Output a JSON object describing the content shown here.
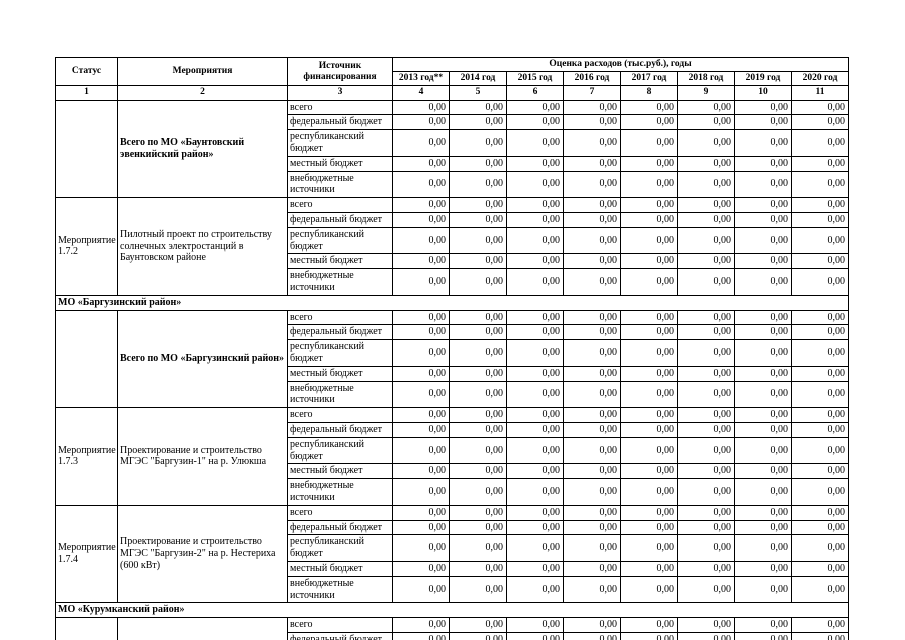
{
  "table": {
    "header": {
      "status": "Статус",
      "activity": "Мероприятия",
      "source": "Источник финансирования",
      "cost_group": "Оценка расходов (тыс.руб.), годы",
      "years": [
        "2013 год**",
        "2014 год",
        "2015 год",
        "2016 год",
        "2017 год",
        "2018 год",
        "2019 год",
        "2020 год"
      ],
      "column_numbers": [
        "1",
        "2",
        "3",
        "4",
        "5",
        "6",
        "7",
        "8",
        "9",
        "10",
        "11"
      ]
    },
    "blocks": [
      {
        "type": "group",
        "status": "",
        "activity": "Всего по МО «Баунтовский эвенкийский район»",
        "activity_bold": true,
        "rows": [
          {
            "source": "всего",
            "values": [
              "0,00",
              "0,00",
              "0,00",
              "0,00",
              "0,00",
              "0,00",
              "0,00",
              "0,00"
            ]
          },
          {
            "source": "федеральный бюджет",
            "values": [
              "0,00",
              "0,00",
              "0,00",
              "0,00",
              "0,00",
              "0,00",
              "0,00",
              "0,00"
            ]
          },
          {
            "source": "республиканский бюджет",
            "values": [
              "0,00",
              "0,00",
              "0,00",
              "0,00",
              "0,00",
              "0,00",
              "0,00",
              "0,00"
            ]
          },
          {
            "source": "местный бюджет",
            "values": [
              "0,00",
              "0,00",
              "0,00",
              "0,00",
              "0,00",
              "0,00",
              "0,00",
              "0,00"
            ]
          },
          {
            "source": "внебюджетные источники",
            "values": [
              "0,00",
              "0,00",
              "0,00",
              "0,00",
              "0,00",
              "0,00",
              "0,00",
              "0,00"
            ]
          }
        ]
      },
      {
        "type": "group",
        "status": "Мероприятие 1.7.2",
        "activity": "Пилотный проект по строительству солнечных электростанций в  Баунтовском районе",
        "activity_bold": false,
        "rows": [
          {
            "source": "всего",
            "values": [
              "0,00",
              "0,00",
              "0,00",
              "0,00",
              "0,00",
              "0,00",
              "0,00",
              "0,00"
            ]
          },
          {
            "source": "федеральный бюджет",
            "values": [
              "0,00",
              "0,00",
              "0,00",
              "0,00",
              "0,00",
              "0,00",
              "0,00",
              "0,00"
            ]
          },
          {
            "source": "республиканский бюджет",
            "values": [
              "0,00",
              "0,00",
              "0,00",
              "0,00",
              "0,00",
              "0,00",
              "0,00",
              "0,00"
            ]
          },
          {
            "source": "местный бюджет",
            "values": [
              "0,00",
              "0,00",
              "0,00",
              "0,00",
              "0,00",
              "0,00",
              "0,00",
              "0,00"
            ]
          },
          {
            "source": "внебюджетные источники",
            "values": [
              "0,00",
              "0,00",
              "0,00",
              "0,00",
              "0,00",
              "0,00",
              "0,00",
              "0,00"
            ]
          }
        ]
      },
      {
        "type": "section",
        "label": "МО «Баргузинский район»"
      },
      {
        "type": "group",
        "status": "",
        "activity": "Всего по МО «Баргузинский район»",
        "activity_bold": true,
        "rows": [
          {
            "source": "всего",
            "values": [
              "0,00",
              "0,00",
              "0,00",
              "0,00",
              "0,00",
              "0,00",
              "0,00",
              "0,00"
            ]
          },
          {
            "source": "федеральный бюджет",
            "values": [
              "0,00",
              "0,00",
              "0,00",
              "0,00",
              "0,00",
              "0,00",
              "0,00",
              "0,00"
            ]
          },
          {
            "source": "республиканский бюджет",
            "values": [
              "0,00",
              "0,00",
              "0,00",
              "0,00",
              "0,00",
              "0,00",
              "0,00",
              "0,00"
            ]
          },
          {
            "source": "местный бюджет",
            "values": [
              "0,00",
              "0,00",
              "0,00",
              "0,00",
              "0,00",
              "0,00",
              "0,00",
              "0,00"
            ]
          },
          {
            "source": "внебюджетные источники",
            "values": [
              "0,00",
              "0,00",
              "0,00",
              "0,00",
              "0,00",
              "0,00",
              "0,00",
              "0,00"
            ]
          }
        ]
      },
      {
        "type": "group",
        "status": "Мероприятие 1.7.3",
        "activity": "Проектирование и строительство МГЭС \"Баргузин-1\" на р. Улюкша",
        "activity_bold": false,
        "rows": [
          {
            "source": "всего",
            "values": [
              "0,00",
              "0,00",
              "0,00",
              "0,00",
              "0,00",
              "0,00",
              "0,00",
              "0,00"
            ]
          },
          {
            "source": "федеральный бюджет",
            "values": [
              "0,00",
              "0,00",
              "0,00",
              "0,00",
              "0,00",
              "0,00",
              "0,00",
              "0,00"
            ]
          },
          {
            "source": "республиканский бюджет",
            "values": [
              "0,00",
              "0,00",
              "0,00",
              "0,00",
              "0,00",
              "0,00",
              "0,00",
              "0,00"
            ]
          },
          {
            "source": "местный бюджет",
            "values": [
              "0,00",
              "0,00",
              "0,00",
              "0,00",
              "0,00",
              "0,00",
              "0,00",
              "0,00"
            ]
          },
          {
            "source": "внебюджетные источники",
            "values": [
              "0,00",
              "0,00",
              "0,00",
              "0,00",
              "0,00",
              "0,00",
              "0,00",
              "0,00"
            ]
          }
        ]
      },
      {
        "type": "group",
        "status": "Мероприятие 1.7.4",
        "activity": "Проектирование и строительство МГЭС \"Баргузин-2\" на р. Нестериха (600 кВт)",
        "activity_bold": false,
        "rows": [
          {
            "source": "всего",
            "values": [
              "0,00",
              "0,00",
              "0,00",
              "0,00",
              "0,00",
              "0,00",
              "0,00",
              "0,00"
            ]
          },
          {
            "source": "федеральный бюджет",
            "values": [
              "0,00",
              "0,00",
              "0,00",
              "0,00",
              "0,00",
              "0,00",
              "0,00",
              "0,00"
            ]
          },
          {
            "source": "республиканский бюджет",
            "values": [
              "0,00",
              "0,00",
              "0,00",
              "0,00",
              "0,00",
              "0,00",
              "0,00",
              "0,00"
            ]
          },
          {
            "source": "местный бюджет",
            "values": [
              "0,00",
              "0,00",
              "0,00",
              "0,00",
              "0,00",
              "0,00",
              "0,00",
              "0,00"
            ]
          },
          {
            "source": "внебюджетные источники",
            "values": [
              "0,00",
              "0,00",
              "0,00",
              "0,00",
              "0,00",
              "0,00",
              "0,00",
              "0,00"
            ]
          }
        ]
      },
      {
        "type": "section",
        "label": "МО «Курумканский район»"
      },
      {
        "type": "group",
        "status": "",
        "activity": "",
        "activity_bold": false,
        "rows": [
          {
            "source": "всего",
            "values": [
              "0,00",
              "0,00",
              "0,00",
              "0,00",
              "0,00",
              "0,00",
              "0,00",
              "0,00"
            ]
          },
          {
            "source": "федеральный бюджет",
            "values": [
              "0,00",
              "0,00",
              "0,00",
              "0,00",
              "0,00",
              "0,00",
              "0,00",
              "0,00"
            ]
          }
        ]
      }
    ]
  }
}
